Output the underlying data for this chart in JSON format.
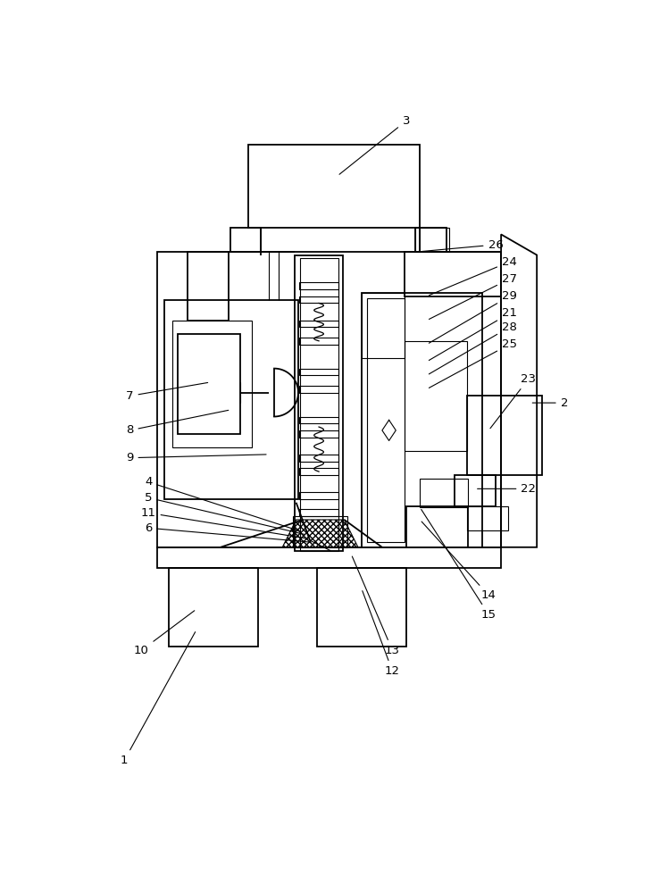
{
  "bg_color": "#ffffff",
  "lc": "#000000",
  "lw": 1.3,
  "tlw": 0.8,
  "figsize": [
    7.29,
    10.0
  ],
  "dpi": 100
}
